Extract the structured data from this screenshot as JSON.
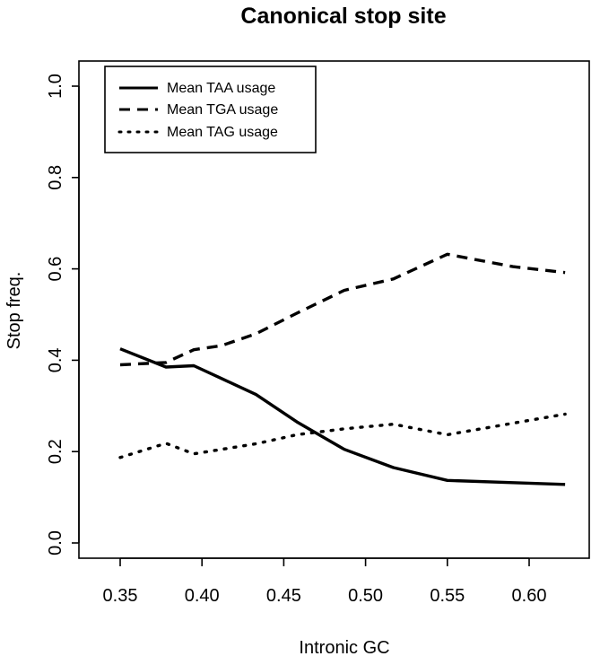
{
  "chart_data": {
    "type": "line",
    "title": "Canonical stop site",
    "xlabel": "Intronic GC",
    "ylabel": "Stop freq.",
    "xlim": [
      0.35,
      0.625
    ],
    "ylim": [
      0.0,
      1.0
    ],
    "x_ticks": [
      0.35,
      0.4,
      0.45,
      0.5,
      0.55,
      0.6
    ],
    "x_tick_labels": [
      "0.35",
      "0.40",
      "0.45",
      "0.50",
      "0.55",
      "0.60"
    ],
    "y_ticks": [
      0.0,
      0.2,
      0.4,
      0.6,
      0.8,
      1.0
    ],
    "y_tick_labels": [
      "0.0",
      "0.2",
      "0.4",
      "0.6",
      "0.8",
      "1.0"
    ],
    "grid": false,
    "legend_position": "top-left",
    "series": [
      {
        "name": "Mean TAA usage",
        "line_style": "solid",
        "x": [
          0.35,
          0.378,
          0.395,
          0.412,
          0.433,
          0.458,
          0.487,
          0.517,
          0.55,
          0.59,
          0.622
        ],
        "y": [
          0.425,
          0.385,
          0.388,
          0.36,
          0.325,
          0.265,
          0.205,
          0.165,
          0.137,
          0.132,
          0.128
        ]
      },
      {
        "name": "Mean TGA usage",
        "line_style": "dashed",
        "x": [
          0.35,
          0.378,
          0.395,
          0.412,
          0.433,
          0.458,
          0.487,
          0.517,
          0.55,
          0.59,
          0.622
        ],
        "y": [
          0.39,
          0.395,
          0.423,
          0.432,
          0.458,
          0.503,
          0.553,
          0.578,
          0.632,
          0.605,
          0.592
        ]
      },
      {
        "name": "Mean TAG usage",
        "line_style": "dotted",
        "x": [
          0.35,
          0.378,
          0.395,
          0.412,
          0.433,
          0.458,
          0.487,
          0.517,
          0.55,
          0.59,
          0.622
        ],
        "y": [
          0.187,
          0.218,
          0.195,
          0.205,
          0.217,
          0.237,
          0.25,
          0.26,
          0.237,
          0.262,
          0.282
        ]
      }
    ]
  }
}
